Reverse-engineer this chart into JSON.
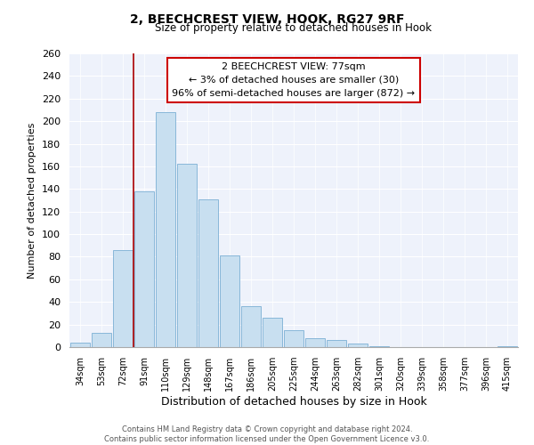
{
  "title1": "2, BEECHCREST VIEW, HOOK, RG27 9RF",
  "title2": "Size of property relative to detached houses in Hook",
  "xlabel": "Distribution of detached houses by size in Hook",
  "ylabel": "Number of detached properties",
  "categories": [
    "34sqm",
    "53sqm",
    "72sqm",
    "91sqm",
    "110sqm",
    "129sqm",
    "148sqm",
    "167sqm",
    "186sqm",
    "205sqm",
    "225sqm",
    "244sqm",
    "263sqm",
    "282sqm",
    "301sqm",
    "320sqm",
    "339sqm",
    "358sqm",
    "377sqm",
    "396sqm",
    "415sqm"
  ],
  "values": [
    4,
    13,
    86,
    138,
    208,
    162,
    131,
    81,
    36,
    26,
    15,
    8,
    6,
    3,
    1,
    0,
    0,
    0,
    0,
    0,
    1
  ],
  "bar_color": "#c8dff0",
  "bar_edge_color": "#7bafd4",
  "vline_x_index": 2.5,
  "vline_color": "#aa0000",
  "annotation_title": "2 BEECHCREST VIEW: 77sqm",
  "annotation_line1": "← 3% of detached houses are smaller (30)",
  "annotation_line2": "96% of semi-detached houses are larger (872) →",
  "annotation_box_color": "#ffffff",
  "annotation_box_edge": "#cc0000",
  "ylim": [
    0,
    260
  ],
  "yticks": [
    0,
    20,
    40,
    60,
    80,
    100,
    120,
    140,
    160,
    180,
    200,
    220,
    240,
    260
  ],
  "footer1": "Contains HM Land Registry data © Crown copyright and database right 2024.",
  "footer2": "Contains public sector information licensed under the Open Government Licence v3.0.",
  "bg_color": "#ffffff",
  "plot_bg_color": "#eef2fb"
}
